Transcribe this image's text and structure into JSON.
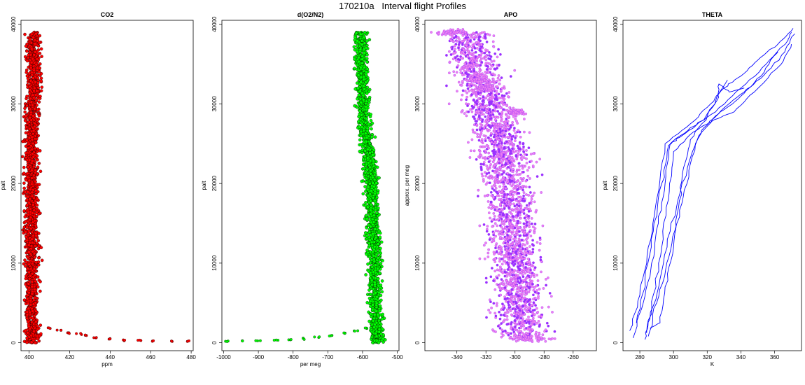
{
  "figure_title": "170210a   Interval flight Profiles",
  "colors": {
    "co2": "#ff0000",
    "o2n2": "#00ff00",
    "apo_fill": "#ee82ee",
    "apo_edge": "#9b30ff",
    "theta": "#0000ff",
    "outline": "#000000"
  },
  "chart_data": [
    {
      "type": "scatter",
      "title": "CO2",
      "xlabel": "ppm",
      "ylabel": "palt",
      "xlim": [
        396,
        481
      ],
      "ylim": [
        -1000,
        40500
      ],
      "xticks": [
        400,
        420,
        440,
        460,
        480
      ],
      "yticks": [
        0,
        10000,
        20000,
        30000,
        40000
      ],
      "series_color": "#ff0000",
      "profile": [
        [
          0,
          401
        ],
        [
          1500,
          402
        ],
        [
          3000,
          401.5
        ],
        [
          5000,
          401
        ],
        [
          10000,
          401.5
        ],
        [
          15000,
          401
        ],
        [
          20000,
          401.5
        ],
        [
          25000,
          401
        ],
        [
          30000,
          402
        ],
        [
          33000,
          402.5
        ],
        [
          36000,
          402
        ],
        [
          39000,
          402
        ]
      ],
      "spread": 2.2,
      "tail": [
        [
          1800,
          410
        ],
        [
          1600,
          415
        ],
        [
          1200,
          420
        ],
        [
          1100,
          425
        ],
        [
          900,
          428
        ],
        [
          600,
          433
        ],
        [
          450,
          440
        ],
        [
          300,
          447
        ],
        [
          250,
          455
        ],
        [
          200,
          462
        ],
        [
          150,
          470
        ],
        [
          150,
          478
        ]
      ]
    },
    {
      "type": "scatter",
      "title": "d(O2/N2)",
      "xlabel": "per meg",
      "ylabel": "palt",
      "xlim": [
        -1005,
        -495
      ],
      "ylim": [
        -1000,
        40500
      ],
      "xticks": [
        -1000,
        -900,
        -800,
        -700,
        -600,
        -500
      ],
      "yticks": [
        0,
        10000,
        20000,
        30000,
        40000
      ],
      "series_color": "#00ff00",
      "profile": [
        [
          0,
          -555
        ],
        [
          2000,
          -560
        ],
        [
          5000,
          -565
        ],
        [
          10000,
          -565
        ],
        [
          15000,
          -570
        ],
        [
          20000,
          -575
        ],
        [
          23000,
          -580
        ],
        [
          26000,
          -590
        ],
        [
          30000,
          -600
        ],
        [
          33000,
          -600
        ],
        [
          36000,
          -605
        ],
        [
          39000,
          -605
        ]
      ],
      "spread": 13,
      "tail": [
        [
          1800,
          -590
        ],
        [
          1500,
          -620
        ],
        [
          1200,
          -650
        ],
        [
          900,
          -690
        ],
        [
          700,
          -730
        ],
        [
          500,
          -770
        ],
        [
          400,
          -810
        ],
        [
          300,
          -850
        ],
        [
          250,
          -900
        ],
        [
          200,
          -950
        ],
        [
          200,
          -990
        ]
      ]
    },
    {
      "type": "scatter",
      "title": "APO",
      "xlabel": "",
      "ylabel": "approx. per meg",
      "xlim": [
        -362,
        -244
      ],
      "ylim": [
        -1000,
        40500
      ],
      "xticks": [
        -340,
        -320,
        -300,
        -280,
        -260
      ],
      "yticks": [
        0,
        10000,
        20000,
        30000,
        40000
      ],
      "series_color": "#ee82ee",
      "profile": [
        [
          500,
          -295
        ],
        [
          3000,
          -295
        ],
        [
          6000,
          -297
        ],
        [
          10000,
          -300
        ],
        [
          15000,
          -302
        ],
        [
          20000,
          -305
        ],
        [
          24000,
          -308
        ],
        [
          28000,
          -315
        ],
        [
          31000,
          -320
        ],
        [
          34000,
          -325
        ],
        [
          37000,
          -330
        ],
        [
          39000,
          -335
        ]
      ],
      "spread": 12
    },
    {
      "type": "line",
      "title": "THETA",
      "xlabel": "K",
      "ylabel": "palt",
      "xlim": [
        270,
        376
      ],
      "ylim": [
        -1000,
        40500
      ],
      "xticks": [
        280,
        300,
        320,
        340,
        360
      ],
      "yticks": [
        0,
        10000,
        20000,
        30000,
        40000
      ],
      "series_color": "#0000ff",
      "series": [
        {
          "points": [
            [
              276,
              600
            ],
            [
              282,
              5000
            ],
            [
              287,
              10000
            ],
            [
              291,
              15000
            ],
            [
              295,
              20000
            ],
            [
              298,
              25000
            ],
            [
              310,
              27000
            ],
            [
              325,
              29000
            ],
            [
              340,
              32000
            ],
            [
              355,
              35000
            ],
            [
              368,
              38000
            ],
            [
              370,
              39000
            ]
          ]
        },
        {
          "points": [
            [
              274,
              1500
            ],
            [
              280,
              6000
            ],
            [
              285,
              12000
            ],
            [
              290,
              18000
            ],
            [
              295,
              25000
            ],
            [
              310,
              27500
            ],
            [
              322,
              30000
            ],
            [
              330,
              32000
            ],
            [
              340,
              33500
            ],
            [
              350,
              35500
            ],
            [
              362,
              37500
            ],
            [
              371,
              39500
            ]
          ]
        },
        {
          "points": [
            [
              283,
              400
            ],
            [
              286,
              3000
            ],
            [
              292,
              8000
            ],
            [
              298,
              14000
            ],
            [
              305,
              20000
            ],
            [
              315,
              26000
            ],
            [
              325,
              28500
            ],
            [
              335,
              30000
            ],
            [
              345,
              32000
            ],
            [
              358,
              34500
            ],
            [
              366,
              36500
            ],
            [
              372,
              38800
            ]
          ]
        },
        {
          "points": [
            [
              278,
              2500
            ],
            [
              283,
              8000
            ],
            [
              288,
              14000
            ],
            [
              293,
              20000
            ],
            [
              297,
              24800
            ],
            [
              305,
              26000
            ],
            [
              318,
              28000
            ],
            [
              326,
              30500
            ],
            [
              327,
              32500
            ],
            [
              333,
              31500
            ],
            [
              342,
              32000
            ]
          ]
        },
        {
          "points": [
            [
              285,
              800
            ],
            [
              290,
              5000
            ],
            [
              296,
              10000
            ],
            [
              302,
              15000
            ],
            [
              308,
              20000
            ],
            [
              313,
              25000
            ],
            [
              318,
              27000
            ],
            [
              330,
              29500
            ],
            [
              342,
              31500
            ],
            [
              352,
              33500
            ],
            [
              362,
              36500
            ]
          ]
        },
        {
          "points": [
            [
              284,
              1200
            ],
            [
              288,
              6000
            ],
            [
              293,
              12000
            ],
            [
              297,
              18000
            ],
            [
              300,
              24000
            ],
            [
              312,
              26500
            ],
            [
              324,
              28000
            ],
            [
              336,
              29000
            ],
            [
              348,
              31500
            ],
            [
              364,
              35000
            ],
            [
              370,
              37500
            ]
          ]
        },
        {
          "points": [
            [
              286,
              1800
            ],
            [
              292,
              2500
            ],
            [
              295,
              7000
            ],
            [
              300,
              12000
            ],
            [
              303,
              17000
            ],
            [
              306,
              22000
            ],
            [
              310,
              25500
            ],
            [
              320,
              28500
            ],
            [
              332,
              33000
            ]
          ]
        }
      ]
    }
  ]
}
